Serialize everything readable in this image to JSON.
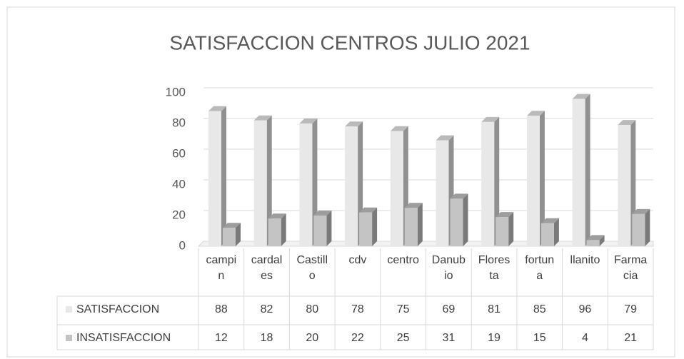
{
  "chart_data": {
    "type": "bar3d",
    "title": "SATISFACCION CENTROS JULIO 2021",
    "categories": [
      "campin",
      "cardales",
      "Castillo",
      "cdv",
      "centro",
      "Danubio",
      "Floresta",
      "fortuna",
      "llanito",
      "Farmacia"
    ],
    "series": [
      {
        "name": "SATISFACCION",
        "color": "#e8e8e8",
        "values": [
          88,
          82,
          80,
          78,
          75,
          69,
          81,
          85,
          96,
          79
        ]
      },
      {
        "name": "INSATISFACCION",
        "color": "#c4c4c4",
        "values": [
          12,
          18,
          20,
          22,
          25,
          31,
          19,
          15,
          4,
          21
        ]
      }
    ],
    "ylim": [
      0,
      100
    ],
    "yticks": [
      0,
      20,
      40,
      60,
      80,
      100
    ],
    "grid": true,
    "data_table": true
  }
}
